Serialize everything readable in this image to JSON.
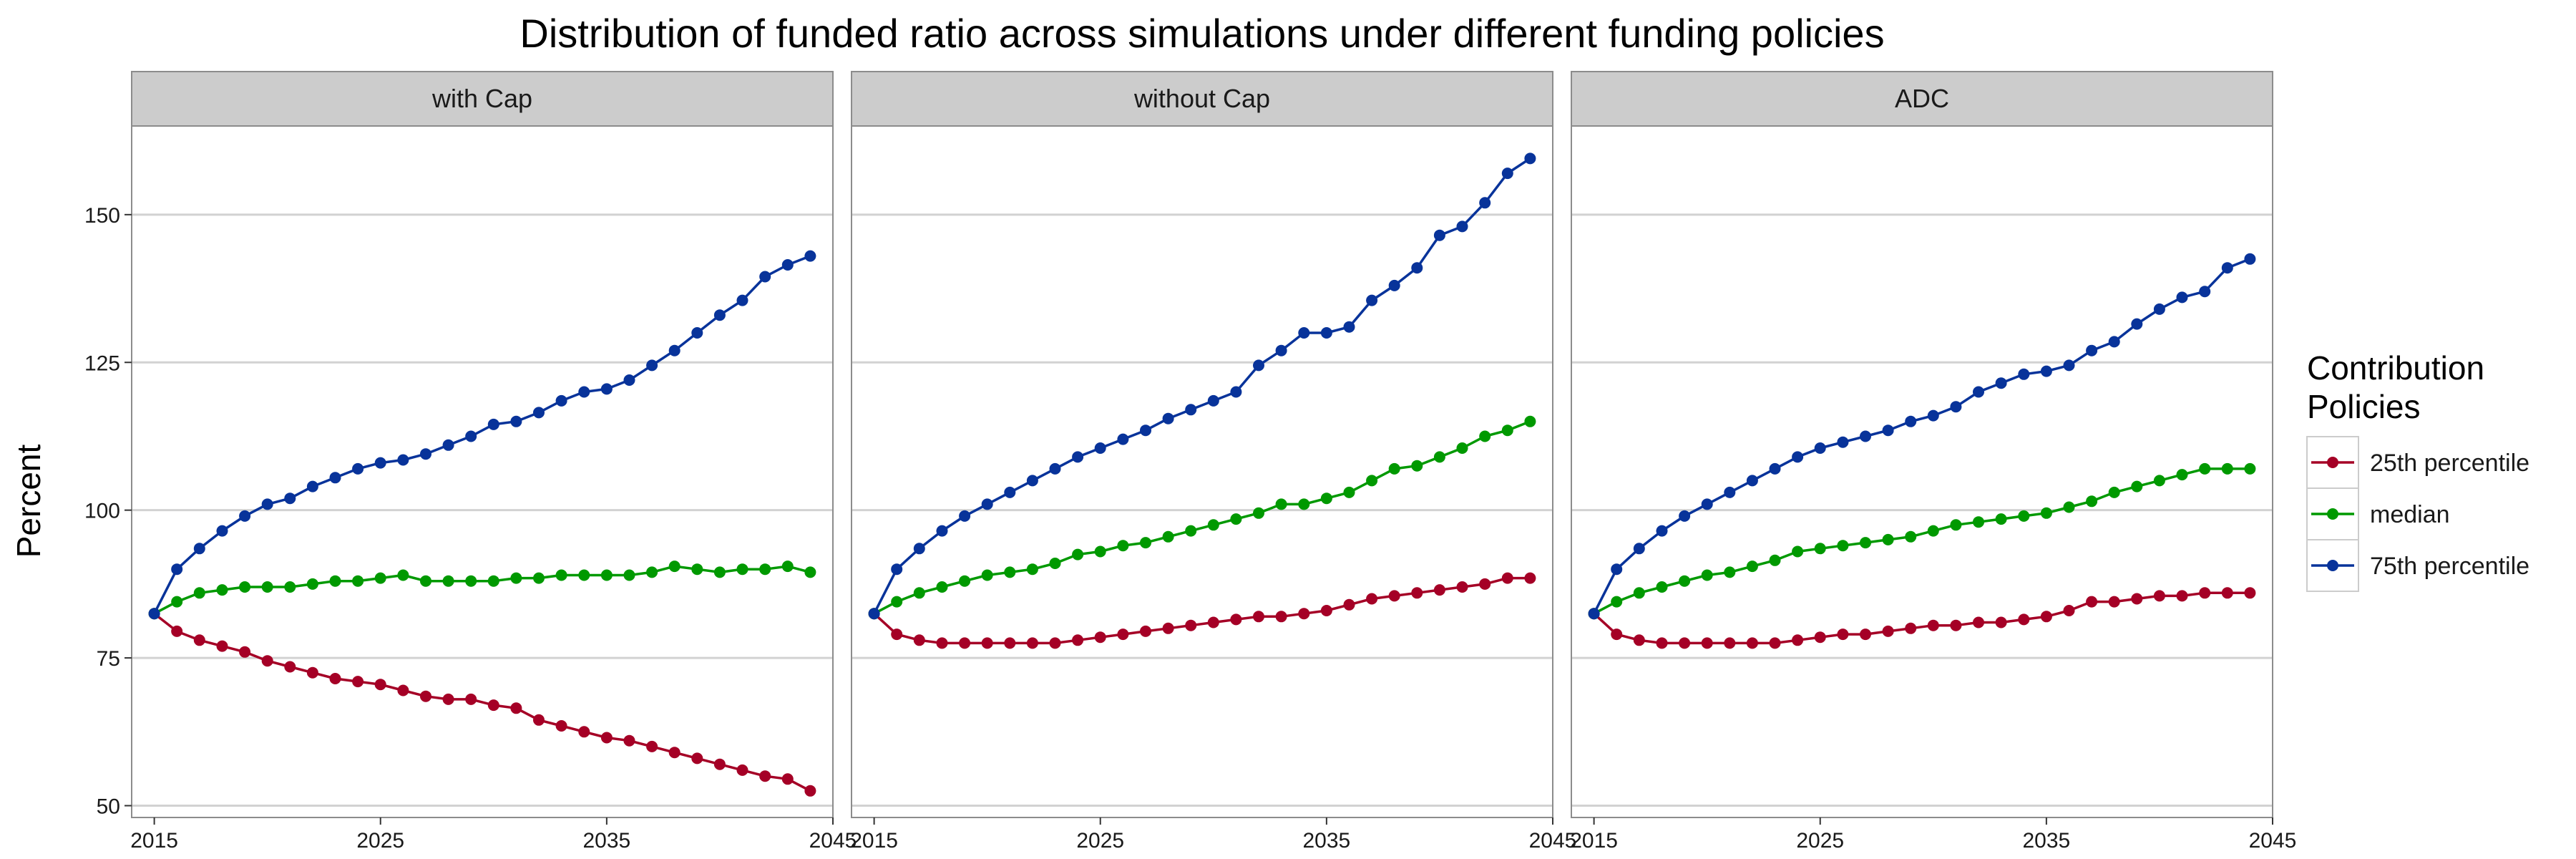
{
  "chart_data": {
    "type": "line",
    "title": "Distribution of funded ratio across simulations under different funding policies",
    "xlabel": "",
    "ylabel": "Percent",
    "ylim": [
      48,
      165
    ],
    "xlim": [
      2014,
      2045
    ],
    "x_ticks": [
      2015,
      2025,
      2035,
      2045
    ],
    "y_ticks": [
      50,
      75,
      100,
      125,
      150
    ],
    "grid": true,
    "legend": {
      "title_lines": [
        "Contribution",
        "Policies"
      ],
      "placement": "right",
      "entries": [
        {
          "label": "25th percentile",
          "color": "#a50026"
        },
        {
          "label": "median",
          "color": "#009900"
        },
        {
          "label": "75th percentile",
          "color": "#08339a"
        }
      ]
    },
    "x": [
      2015,
      2016,
      2017,
      2018,
      2019,
      2020,
      2021,
      2022,
      2023,
      2024,
      2025,
      2026,
      2027,
      2028,
      2029,
      2030,
      2031,
      2032,
      2033,
      2034,
      2035,
      2036,
      2037,
      2038,
      2039,
      2040,
      2041,
      2042,
      2043,
      2044
    ],
    "panels": [
      {
        "name": "with Cap",
        "series": [
          {
            "name": "25th percentile",
            "color": "#a50026",
            "values": [
              82.5,
              79.5,
              78,
              77,
              76,
              74.5,
              73.5,
              72.5,
              71.5,
              71,
              70.5,
              69.5,
              68.5,
              68,
              68,
              67,
              66.5,
              64.5,
              63.5,
              62.5,
              61.5,
              61,
              60,
              59,
              58,
              57,
              56,
              55,
              54.5,
              52.5
            ]
          },
          {
            "name": "median",
            "color": "#009900",
            "values": [
              82.5,
              84.5,
              86,
              86.5,
              87,
              87,
              87,
              87.5,
              88,
              88,
              88.5,
              89,
              88,
              88,
              88,
              88,
              88.5,
              88.5,
              89,
              89,
              89,
              89,
              89.5,
              90.5,
              90,
              89.5,
              90,
              90,
              90.5,
              89.5
            ]
          },
          {
            "name": "75th percentile",
            "color": "#08339a",
            "values": [
              82.5,
              90,
              93.5,
              96.5,
              99,
              101,
              102,
              104,
              105.5,
              107,
              108,
              108.5,
              109.5,
              111,
              112.5,
              114.5,
              115,
              116.5,
              118.5,
              120,
              120.5,
              122,
              124.5,
              127,
              130,
              133,
              135.5,
              139.5,
              141.5,
              143
            ]
          }
        ]
      },
      {
        "name": "without Cap",
        "series": [
          {
            "name": "25th percentile",
            "color": "#a50026",
            "values": [
              82.5,
              79,
              78,
              77.5,
              77.5,
              77.5,
              77.5,
              77.5,
              77.5,
              78,
              78.5,
              79,
              79.5,
              80,
              80.5,
              81,
              81.5,
              82,
              82,
              82.5,
              83,
              84,
              85,
              85.5,
              86,
              86.5,
              87,
              87.5,
              88.5,
              88.5
            ]
          },
          {
            "name": "median",
            "color": "#009900",
            "values": [
              82.5,
              84.5,
              86,
              87,
              88,
              89,
              89.5,
              90,
              91,
              92.5,
              93,
              94,
              94.5,
              95.5,
              96.5,
              97.5,
              98.5,
              99.5,
              101,
              101,
              102,
              103,
              105,
              107,
              107.5,
              109,
              110.5,
              112.5,
              113.5,
              115
            ]
          },
          {
            "name": "75th percentile",
            "color": "#08339a",
            "values": [
              82.5,
              90,
              93.5,
              96.5,
              99,
              101,
              103,
              105,
              107,
              109,
              110.5,
              112,
              113.5,
              115.5,
              117,
              118.5,
              120,
              124.5,
              127,
              130,
              130,
              131,
              135.5,
              138,
              141,
              146.5,
              148,
              152,
              157,
              159.5
            ]
          }
        ]
      },
      {
        "name": "ADC",
        "series": [
          {
            "name": "25th percentile",
            "color": "#a50026",
            "values": [
              82.5,
              79,
              78,
              77.5,
              77.5,
              77.5,
              77.5,
              77.5,
              77.5,
              78,
              78.5,
              79,
              79,
              79.5,
              80,
              80.5,
              80.5,
              81,
              81,
              81.5,
              82,
              83,
              84.5,
              84.5,
              85,
              85.5,
              85.5,
              86,
              86,
              86
            ]
          },
          {
            "name": "median",
            "color": "#009900",
            "values": [
              82.5,
              84.5,
              86,
              87,
              88,
              89,
              89.5,
              90.5,
              91.5,
              93,
              93.5,
              94,
              94.5,
              95,
              95.5,
              96.5,
              97.5,
              98,
              98.5,
              99,
              99.5,
              100.5,
              101.5,
              103,
              104,
              105,
              106,
              107,
              107,
              107
            ]
          },
          {
            "name": "75th percentile",
            "color": "#08339a",
            "values": [
              82.5,
              90,
              93.5,
              96.5,
              99,
              101,
              103,
              105,
              107,
              109,
              110.5,
              111.5,
              112.5,
              113.5,
              115,
              116,
              117.5,
              120,
              121.5,
              123,
              123.5,
              124.5,
              127,
              128.5,
              131.5,
              134,
              136,
              137,
              141,
              142.5
            ]
          }
        ]
      }
    ]
  }
}
